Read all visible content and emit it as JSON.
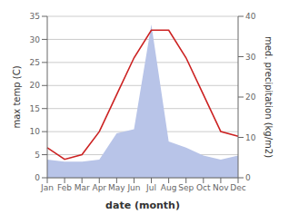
{
  "chart_data": {
    "type": "line",
    "categories": [
      "Jan",
      "Feb",
      "Mar",
      "Apr",
      "May",
      "Jun",
      "Jul",
      "Aug",
      "Sep",
      "Oct",
      "Nov",
      "Dec"
    ],
    "series": [
      {
        "type": "area",
        "axis": "y2",
        "color": "#b8c4e8",
        "values": [
          4.5,
          4.0,
          4.0,
          4.5,
          11.0,
          12.0,
          38.0,
          9.0,
          7.5,
          5.5,
          4.5,
          5.5
        ]
      },
      {
        "type": "line",
        "color": "#cc2222",
        "values": [
          6.5,
          4.0,
          5.0,
          10.0,
          18.0,
          26.0,
          32.0,
          32.0,
          26.0,
          18.0,
          10.0,
          9.0
        ]
      }
    ],
    "xlabel": "date (month)",
    "ylabel": "max temp (C)",
    "y2label": "med. precipitation (kg/m2)",
    "ylim": [
      0,
      35
    ],
    "yticks": [
      0,
      5,
      10,
      15,
      20,
      25,
      30,
      35
    ],
    "y2lim": [
      0,
      40
    ],
    "y2ticks": [
      0,
      10,
      20,
      30,
      40
    ],
    "grid": true
  }
}
